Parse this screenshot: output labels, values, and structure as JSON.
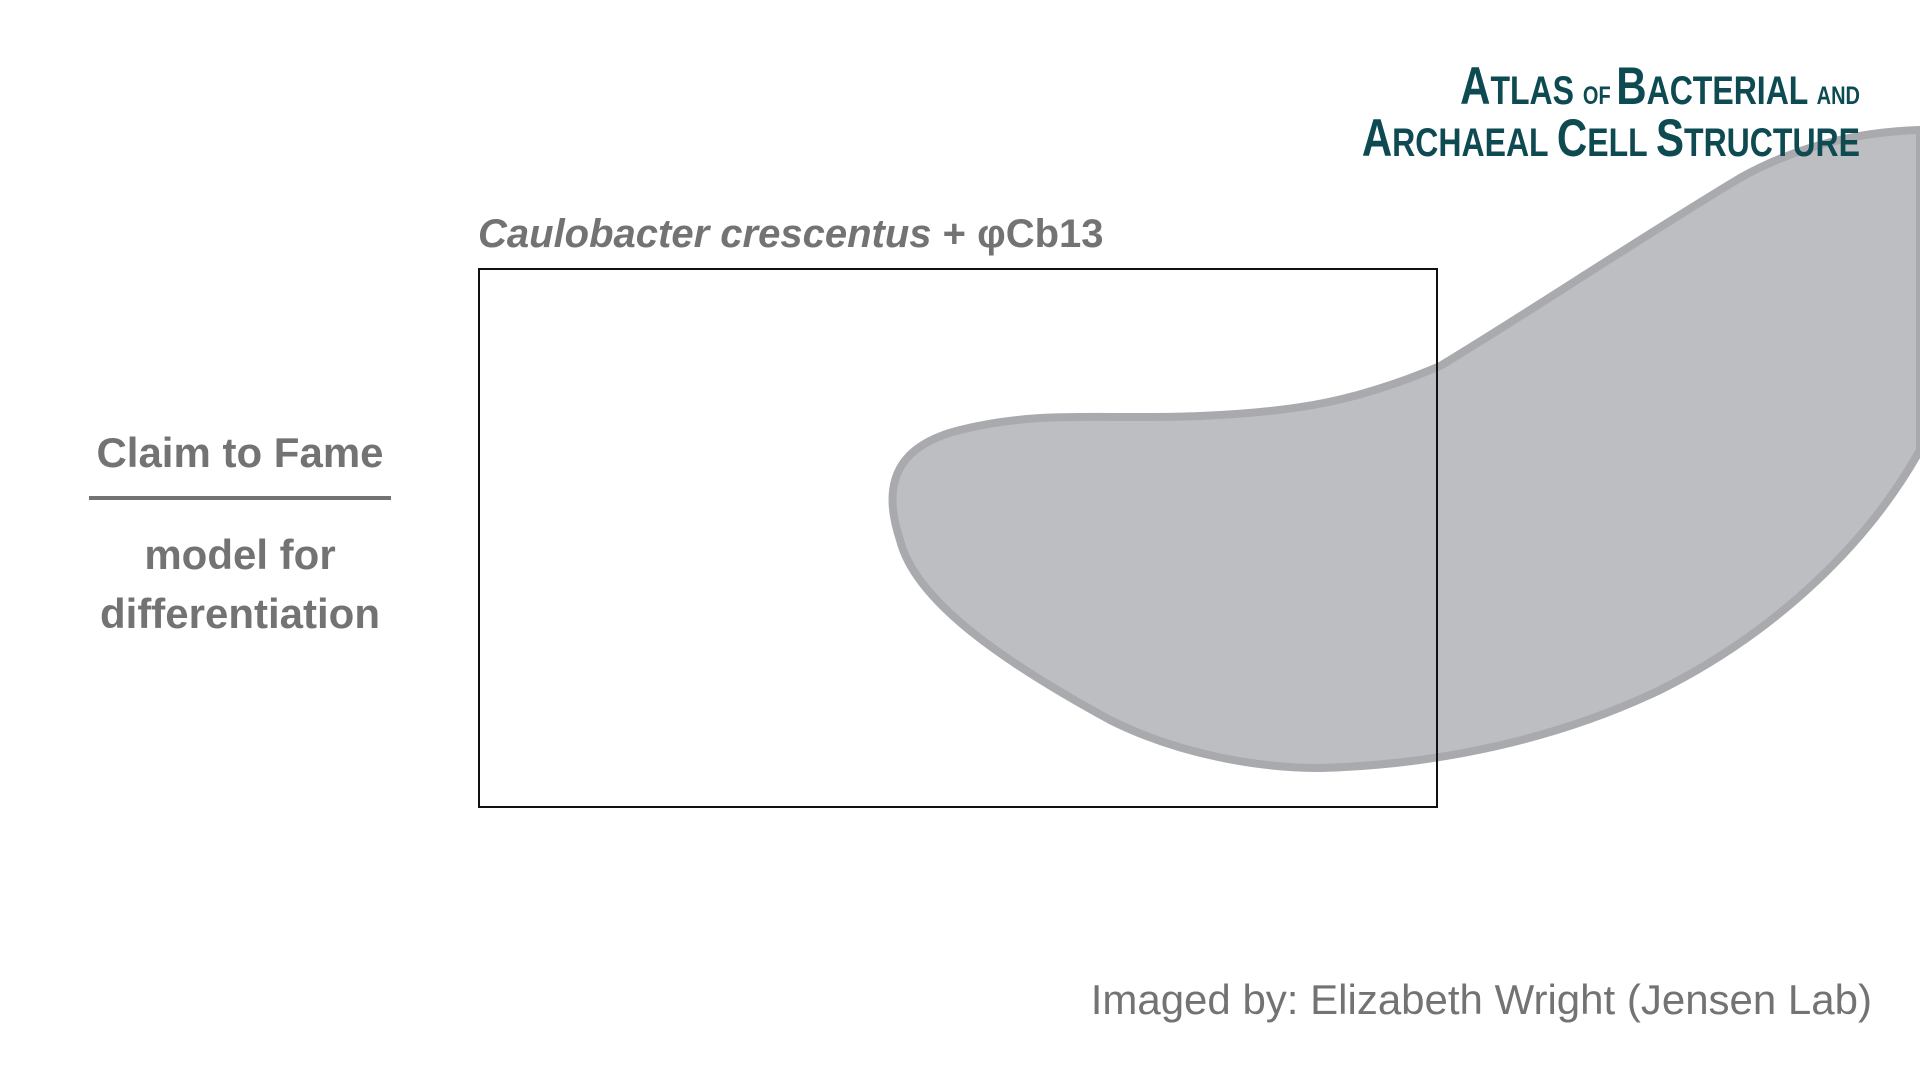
{
  "logo": {
    "line1": {
      "cap1": "A",
      "rest1": "TLAS ",
      "of": "OF ",
      "cap2": "B",
      "rest2": "ACTERIAL ",
      "and": "AND"
    },
    "line2": {
      "cap1": "A",
      "rest1": "RCHAEAL ",
      "cap2": "C",
      "rest2": "ELL ",
      "cap3": "S",
      "rest3": "TRUCTURE"
    }
  },
  "specimen": {
    "species": "Caulobacter crescentus",
    "suffix": " + φCb13"
  },
  "claim": {
    "heading": "Claim to Fame",
    "line1": "model for",
    "line2": "differentiation"
  },
  "credit": "Imaged by: Elizabeth Wright (Jensen Lab)",
  "colors": {
    "cell_fill": "#bdbec2",
    "cell_stroke": "#a9aaae",
    "text_gray": "#737373",
    "logo_teal": "#0e4a52",
    "frame": "#111111"
  }
}
